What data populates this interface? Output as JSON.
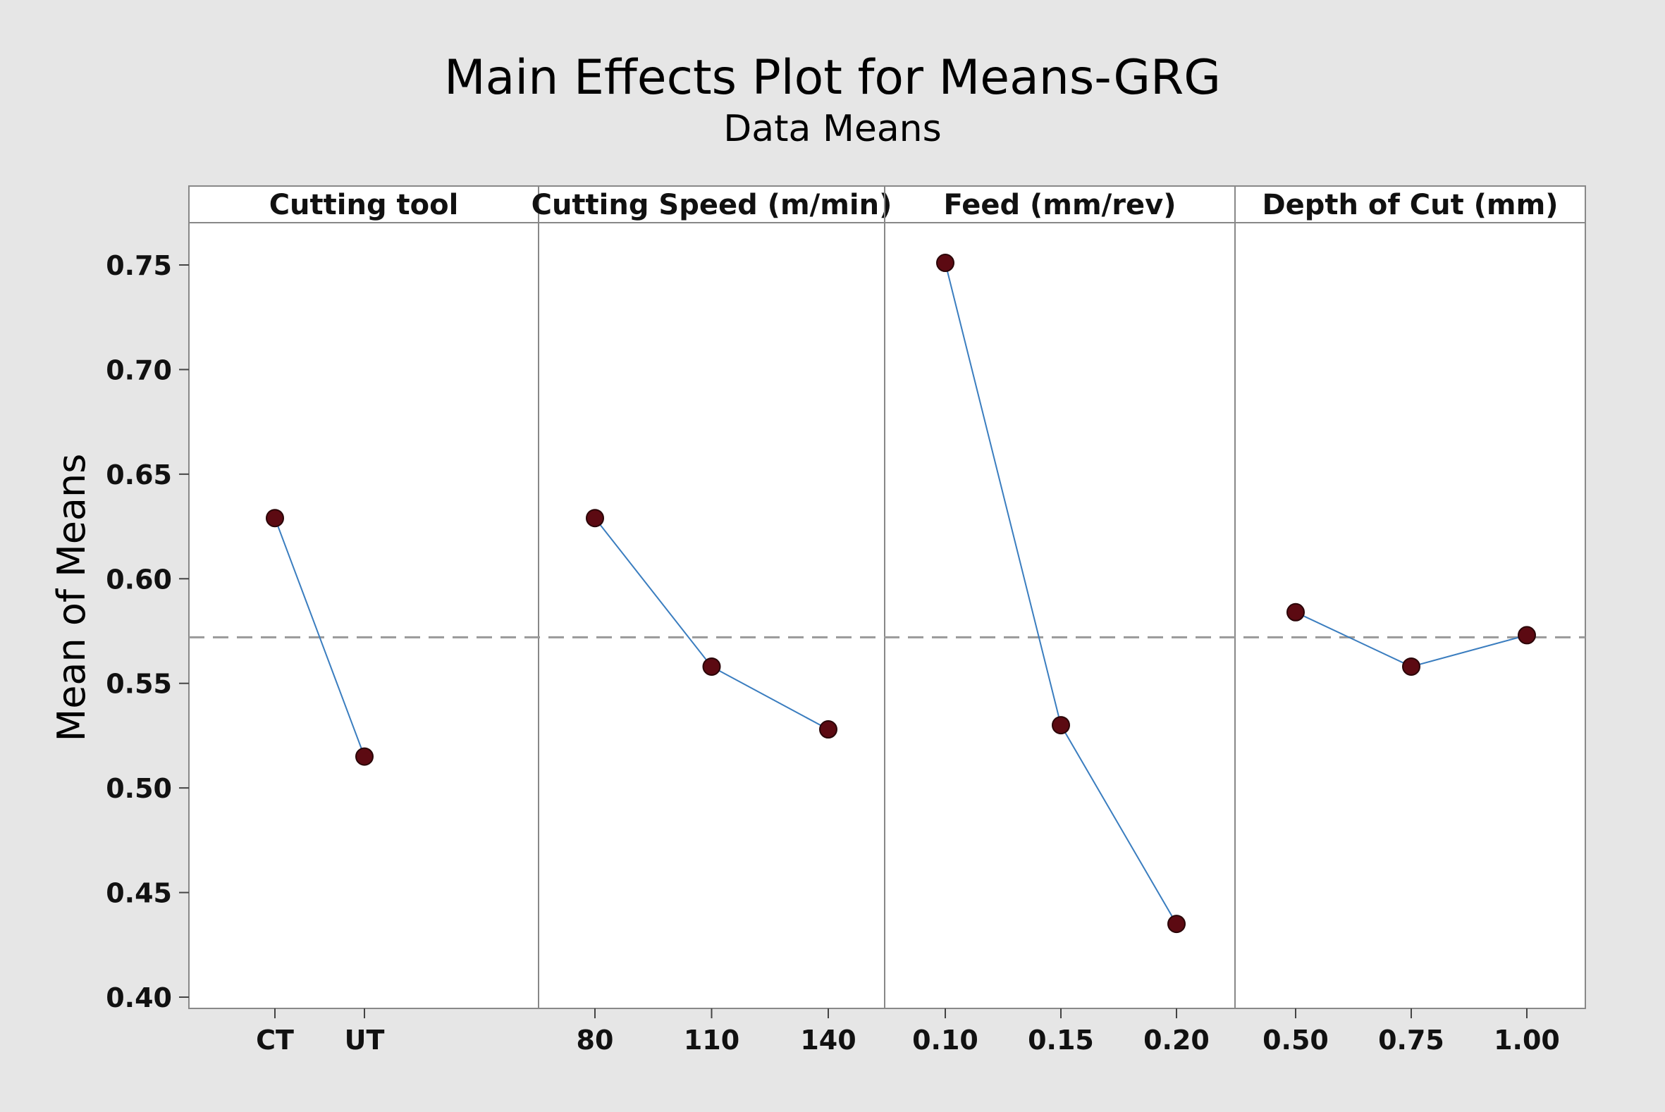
{
  "chart_data": {
    "type": "line",
    "title": "Main Effects Plot for Means-GRG",
    "subtitle": "Data Means",
    "ylabel": "Mean of Means",
    "ylim": [
      0.4,
      0.77
    ],
    "yticks": [
      "0.40",
      "0.45",
      "0.50",
      "0.55",
      "0.60",
      "0.65",
      "0.70",
      "0.75"
    ],
    "reference_line": 0.572,
    "panels": [
      {
        "name": "Cutting tool",
        "categories": [
          "CT",
          "UT"
        ],
        "values": [
          0.629,
          0.515
        ]
      },
      {
        "name": "Cutting Speed (m/min)",
        "categories": [
          "80",
          "110",
          "140"
        ],
        "values": [
          0.629,
          0.558,
          0.528
        ]
      },
      {
        "name": "Feed (mm/rev)",
        "categories": [
          "0.10",
          "0.15",
          "0.20"
        ],
        "values": [
          0.751,
          0.53,
          0.435
        ]
      },
      {
        "name": "Depth of Cut (mm)",
        "categories": [
          "0.50",
          "0.75",
          "1.00"
        ],
        "values": [
          0.584,
          0.558,
          0.573
        ]
      }
    ],
    "colors": {
      "line": "#3a7dbf",
      "marker": "#5c0a12",
      "reference": "#999999",
      "plot_bg": "#ffffff",
      "figure_bg": "#e6e6e6"
    }
  }
}
